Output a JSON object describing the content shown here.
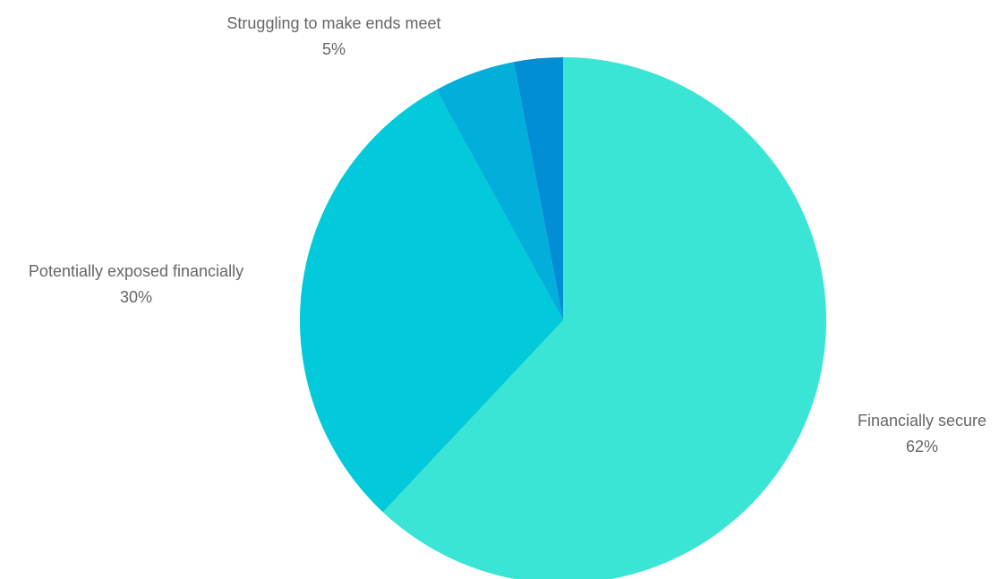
{
  "chart_data": {
    "type": "pie",
    "slices": [
      {
        "label": "Financially secure",
        "value": 62,
        "value_label": "62%",
        "color": "#3ae5d5"
      },
      {
        "label": "Potentially exposed financially",
        "value": 30,
        "value_label": "30%",
        "color": "#02cadb"
      },
      {
        "label": "Struggling to make ends meet",
        "value": 5,
        "value_label": "5%",
        "color": "#02afdb"
      },
      {
        "label": "",
        "value": 3,
        "value_label": "",
        "color": "#028ed5"
      }
    ],
    "start_angle": "12 o'clock",
    "direction": "clockwise",
    "legend": "none",
    "data_labels": "outside"
  }
}
